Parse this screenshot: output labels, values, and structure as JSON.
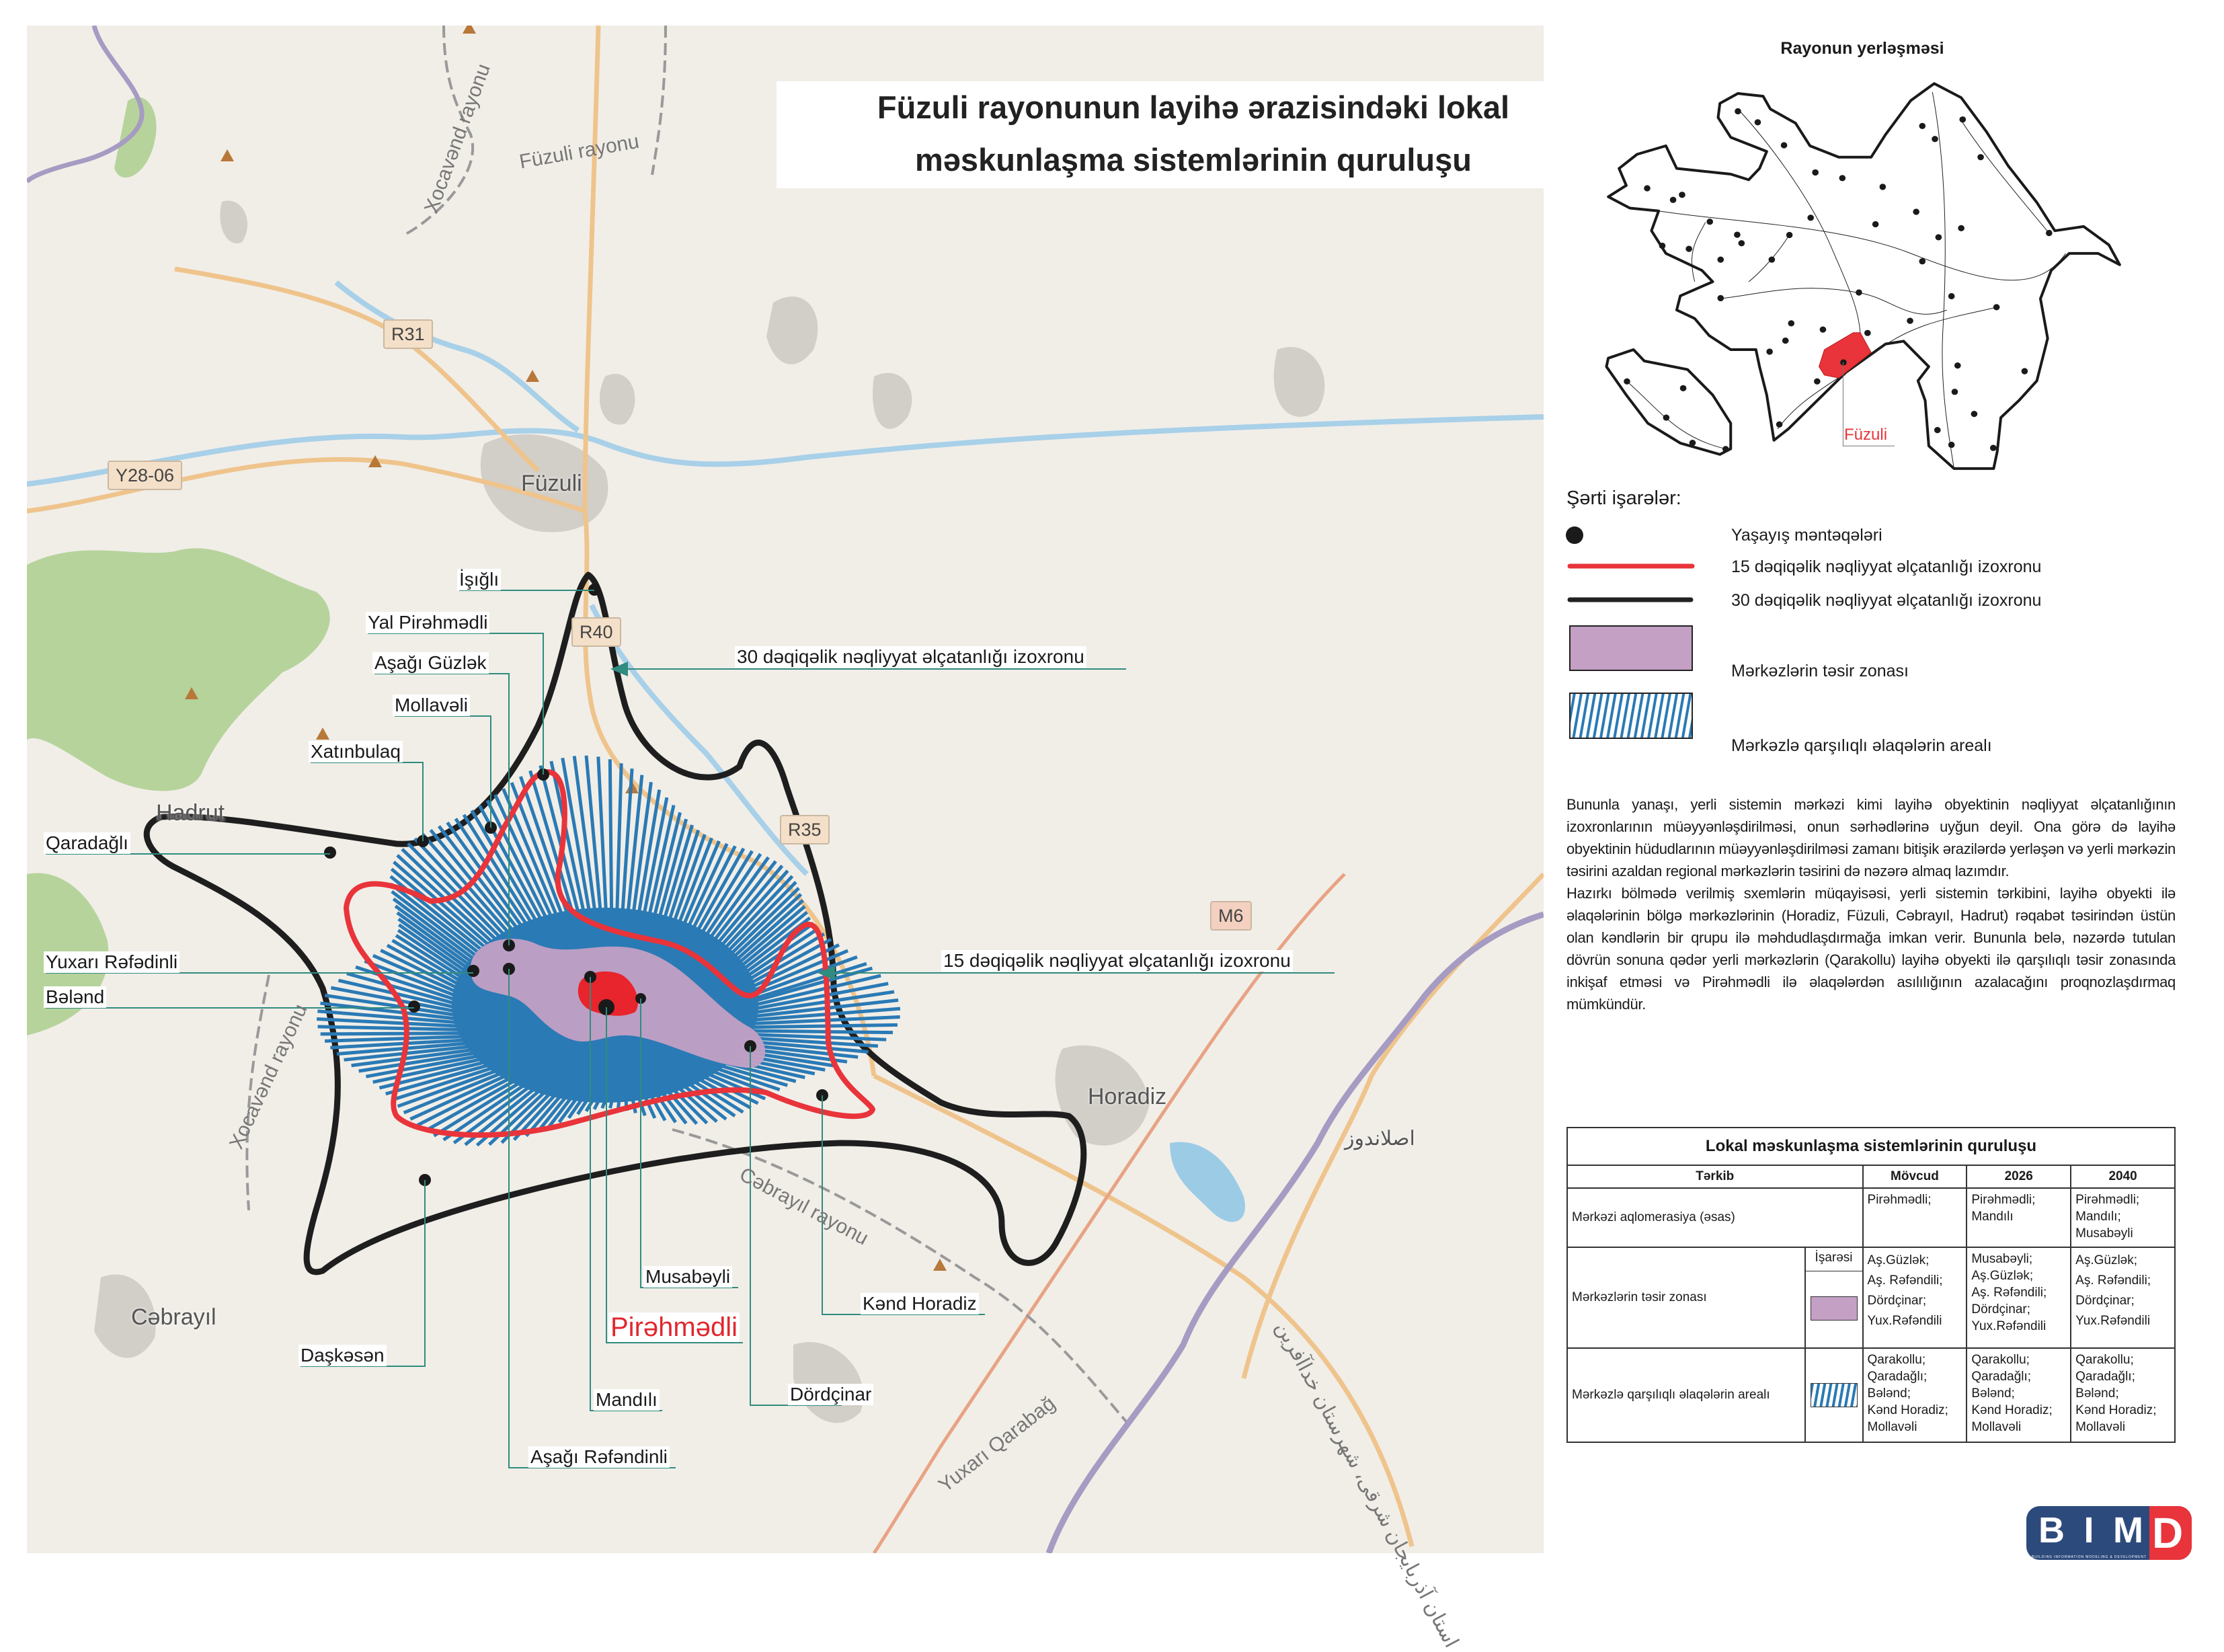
{
  "title": {
    "line1": "Füzuli rayonunun layihə ərazisindəki lokal",
    "line2": "məskunlaşma sistemlərinin quruluşu"
  },
  "map": {
    "places": {
      "fuzuli": "Füzuli",
      "horadiz": "Horadiz",
      "cabrayil": "Cəbrayıl",
      "hadrut": "Hadrut",
      "aslanduz": "اصلاندوز"
    },
    "roads": {
      "r31": "R31",
      "y28": "Y28-06",
      "r40": "R40",
      "r35": "R35",
      "m6": "M6"
    },
    "regions": {
      "xocavend_top": "Xocavənd rayonu",
      "fuzuli_rayonu": "Füzuli rayonu",
      "xocavend_left": "Xocavənd rayonu",
      "cabrayil_rayonu": "Cəbrayıl rayonu",
      "yuxari_qarabag": "Yuxarı Qarabağ",
      "iran_province": "استان آذربایجان شرقی، شهرستان خداآفرین"
    },
    "villages": {
      "isigli": "İşığlı",
      "yal_pirahmadli": "Yal Pirəhmədli",
      "asagi_guzlak": "Aşağı Güzlək",
      "mollaveli": "Mollavəli",
      "xatinbulaq": "Xatınbulaq",
      "qaradagli": "Qaradağlı",
      "yuxari_rafadinli": "Yuxarı Rəfədinli",
      "baland": "Bələnd",
      "musabayli": "Musabəyli",
      "pirahmadli": "Pirəhmədli",
      "kend_horadiz": "Kənd Horadiz",
      "daskasan": "Daşkəsən",
      "dordcinar": "Dördçinar",
      "mandili": "Mandılı",
      "asagi_rafandinli": "Aşağı Rəfəndinli"
    },
    "callouts": {
      "iso30": "30 dəqiqəlik nəqliyyat əlçatanlığı izoxronu",
      "iso15": "15 dəqiqəlik nəqliyyat əlçatanlığı izoxronu"
    }
  },
  "inset": {
    "title": "Rayonun yerləşməsi",
    "highlight_label": "Füzuli",
    "highlight_color": "#e8343a"
  },
  "legend": {
    "heading": "Şərti işarələr:",
    "items": [
      {
        "icon": "dot",
        "label": "Yaşayış məntəqələri"
      },
      {
        "icon": "red-line",
        "color": "#e8343a",
        "label": "15 dəqiqəlik nəqliyyat əlçatanlığı izoxronu"
      },
      {
        "icon": "black-line",
        "color": "#222222",
        "label": "30 dəqiqəlik nəqliyyat əlçatanlığı izoxronu"
      },
      {
        "icon": "purple-area",
        "color": "#c3a0c4",
        "label": "Mərkəzlərin təsir zonası"
      },
      {
        "icon": "blue-hatch",
        "color": "#2a7ab5",
        "label": "Mərkəzlə qarşılıqlı əlaqələrin arealı"
      }
    ]
  },
  "description": [
    "Bununla yanaşı, yerli sistemin mərkəzi kimi layihə obyektinin nəqliyyat əlçatanlığının izoxronlarının müəyyənləşdirilməsi, onun sərhədlərinə uyğun deyil. Ona görə də layihə obyektinin hüdudlarının müəyyənləşdirilməsi zamanı bitişik ərazilərdə yerləşən və yerli mərkəzin təsirini azaldan regional mərkəzlərin təsirini də nəzərə almaq lazımdır.",
    "Hazırkı bölmədə verilmiş sxemlərin müqayisəsi, yerli sistemin tərkibini, layihə obyekti ilə əlaqələrinin bölgə mərkəzlərinin (Horadiz, Füzuli, Cəbrayıl, Hadrut) rəqabət təsirindən üstün olan kəndlərin bir qrupu ilə məhdudlaşdırmağa imkan verir. Bununla belə, nəzərdə tutulan dövrün sonuna qədər yerli mərkəzlərin (Qarakollu) layihə obyekti ilə qarşılıqlı təsir zonasında inkişaf etməsi və Pirəhmədli ilə əlaqələrdən asılılığının azalacağını proqnozlaşdırmaq mümkündür."
  ],
  "table": {
    "caption": "Lokal məskunlaşma sistemlərinin quruluşu",
    "headers": [
      "Tərkib",
      "Mövcud",
      "2026",
      "2040"
    ],
    "symbol_header": "İşarəsi",
    "rows": [
      {
        "name": "Mərkəzi aqlomerasiya (əsas)",
        "movcud": [
          "Pirəhmədli;"
        ],
        "y2026": [
          "Pirəhmədli;",
          "Mandılı"
        ],
        "y2040": [
          "Pirəhmədli;",
          "Mandılı;",
          "Musabəyli"
        ]
      },
      {
        "name": "Mərkəzlərin təsir zonası",
        "movcud": [
          "Aş.Güzlək;",
          "Aş. Rəfəndili;",
          "Dördçinar;",
          "Yux.Rəfəndili"
        ],
        "y2026": [
          "Musabəyli;",
          "Aş.Güzlək;",
          "Aş. Rəfəndili;",
          "Dördçinar;",
          "Yux.Rəfəndili"
        ],
        "y2040": [
          "Aş.Güzlək;",
          "Aş. Rəfəndili;",
          "Dördçinar;",
          "Yux.Rəfəndili"
        ]
      },
      {
        "name": "Mərkəzlə qarşılıqlı əlaqələrin arealı",
        "movcud": [
          "Qarakollu;",
          "Qaradağlı;",
          "Bələnd;",
          "Kənd Horadiz;",
          "Mollavəli"
        ],
        "y2026": [
          "Qarakollu;",
          "Qaradağlı;",
          "Bələnd;",
          "Kənd Horadiz;",
          "Mollavəli"
        ],
        "y2040": [
          "Qarakollu;",
          "Qaradağlı;",
          "Bələnd;",
          "Kənd Horadiz;",
          "Mollavəli"
        ]
      }
    ]
  },
  "logo": {
    "text": "BIMD",
    "tagline": "BUILDING INFORMATION MODELING & DEVELOPMENT",
    "colors": {
      "navy": "#2d4a7c",
      "red": "#e8343a"
    }
  }
}
